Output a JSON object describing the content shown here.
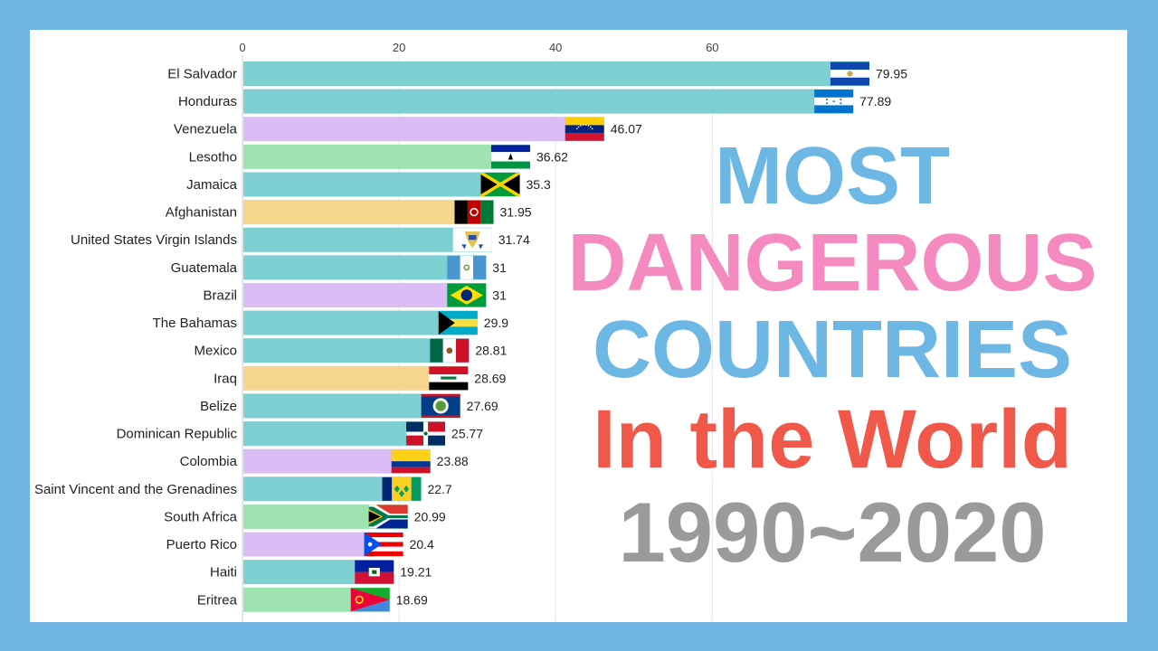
{
  "title": {
    "line1": "MOST",
    "line2": "DANGEROUS",
    "line3": "COUNTRIES",
    "line4": "In the World",
    "line5": "1990~2020",
    "colors": {
      "line1": "#6cb7e4",
      "line2": "#f48ac0",
      "line3": "#6cb7e4",
      "line4": "#f0594a",
      "line5": "#9a9a9a"
    }
  },
  "chart_data": {
    "type": "bar",
    "orientation": "horizontal",
    "x_ticks": [
      0,
      20,
      40,
      60
    ],
    "xlim": [
      0,
      80
    ],
    "grid": true,
    "categories": [
      "El Salvador",
      "Honduras",
      "Venezuela",
      "Lesotho",
      "Jamaica",
      "Afghanistan",
      "United States Virgin Islands",
      "Guatemala",
      "Brazil",
      "The Bahamas",
      "Mexico",
      "Iraq",
      "Belize",
      "Dominican Republic",
      "Colombia",
      "Saint Vincent and the Grenadines",
      "South Africa",
      "Puerto Rico",
      "Haiti",
      "Eritrea"
    ],
    "values": [
      79.95,
      77.89,
      46.07,
      36.62,
      35.3,
      31.95,
      31.74,
      31.0,
      31.0,
      29.9,
      28.81,
      28.69,
      27.69,
      25.77,
      23.88,
      22.7,
      20.99,
      20.4,
      19.21,
      18.69
    ],
    "value_labels": [
      "79.95",
      "77.89",
      "46.07",
      "36.62",
      "35.3",
      "31.95",
      "31.74",
      "31",
      "31",
      "29.9",
      "28.81",
      "28.69",
      "27.69",
      "25.77",
      "23.88",
      "22.7",
      "20.99",
      "20.4",
      "19.21",
      "18.69"
    ],
    "region_colors": {
      "americas": "#7ecfd2",
      "south_america": "#dcbcf4",
      "africa": "#9fe3b1",
      "asia": "#f6d58d"
    },
    "bar_regions": [
      "americas",
      "americas",
      "south_america",
      "africa",
      "americas",
      "asia",
      "americas",
      "americas",
      "south_america",
      "americas",
      "americas",
      "asia",
      "americas",
      "americas",
      "south_america",
      "americas",
      "africa",
      "south_america",
      "americas",
      "africa"
    ],
    "flag_icons": [
      "flag-el-salvador-icon",
      "flag-honduras-icon",
      "flag-venezuela-icon",
      "flag-lesotho-icon",
      "flag-jamaica-icon",
      "flag-afghanistan-icon",
      "flag-usvi-icon",
      "flag-guatemala-icon",
      "flag-brazil-icon",
      "flag-bahamas-icon",
      "flag-mexico-icon",
      "flag-iraq-icon",
      "flag-belize-icon",
      "flag-dominican-republic-icon",
      "flag-colombia-icon",
      "flag-svg-icon",
      "flag-south-africa-icon",
      "flag-puerto-rico-icon",
      "flag-haiti-icon",
      "flag-eritrea-icon"
    ]
  }
}
